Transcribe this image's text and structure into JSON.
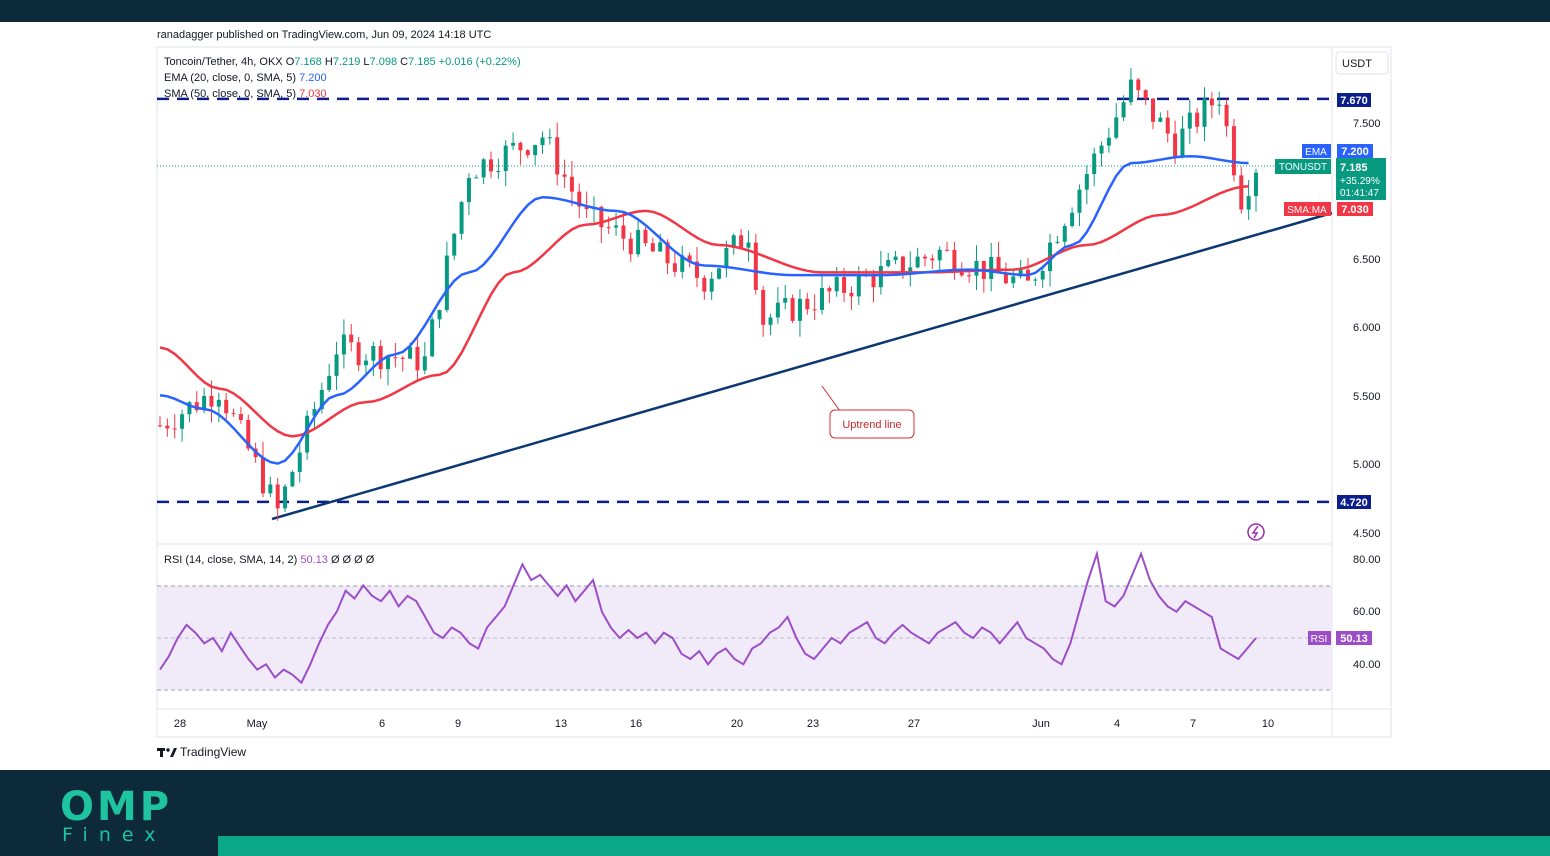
{
  "publisher": "ranadagger published on TradingView.com, Jun 09, 2024 14:18 UTC",
  "legend": {
    "symbol": "Toncoin/Tether, 4h, OKX",
    "o_label": "O",
    "o": "7.168",
    "h_label": "H",
    "h": "7.219",
    "l_label": "L",
    "l": "7.098",
    "c_label": "C",
    "c": "7.185",
    "change": "+0.016 (+0.22%)",
    "ema_label": "EMA (20, close, 0, SMA, 5)",
    "ema_value": "7.200",
    "sma_label": "SMA (50, close, 0, SMA, 5)",
    "sma_value": "7.030"
  },
  "currency": "USDT",
  "annotation": "Uptrend line",
  "price_tags": {
    "resistance": "7.670",
    "support": "4.720",
    "ema_tag": "EMA",
    "ema_value": "7.200",
    "ticker": "TONUSDT",
    "price": "7.185",
    "pct": "+35.29%",
    "countdown": "01:41:47",
    "sma_tag": "SMA:MA",
    "sma_value": "7.030",
    "rsi_tag": "RSI",
    "rsi_value": "50.13"
  },
  "rsi_legend": {
    "label": "RSI (14, close, SMA, 14, 2)",
    "value": "50.13",
    "extra": "Ø Ø Ø Ø"
  },
  "tradingview": "TradingView",
  "brand": {
    "name": "OMP",
    "sub": "Finex"
  },
  "colors": {
    "up": "#089981",
    "down": "#f23645",
    "ema": "#2962ff",
    "sma": "#f23645",
    "rsi": "#9c4dc8",
    "trend": "#0b3773",
    "level": "#0b1e8c"
  },
  "chart_data": [
    {
      "type": "candlestick",
      "title": "Toncoin/Tether, 4h, OKX",
      "x_tick_labels": [
        "28",
        "May",
        "6",
        "9",
        "13",
        "16",
        "20",
        "23",
        "27",
        "Jun",
        "4",
        "7",
        "10"
      ],
      "y_tick_labels": [
        "7.500",
        "7.000",
        "6.500",
        "6.000",
        "5.500",
        "5.000",
        "4.500"
      ],
      "ylim": [
        4.4,
        7.95
      ],
      "horizontal_levels": [
        7.67,
        4.72
      ],
      "last_price": 7.185,
      "key_points": [
        {
          "x": "Apr 26",
          "close": 5.28
        },
        {
          "x": "Apr 28",
          "close": 5.55
        },
        {
          "x": "May 1",
          "close": 4.65
        },
        {
          "x": "May 4",
          "close": 5.85
        },
        {
          "x": "May 8",
          "close": 5.75
        },
        {
          "x": "May 10",
          "close": 7.15
        },
        {
          "x": "May 13",
          "close": 7.4
        },
        {
          "x": "May 15",
          "close": 6.8
        },
        {
          "x": "May 20",
          "close": 6.35
        },
        {
          "x": "May 22",
          "close": 6.7
        },
        {
          "x": "May 23",
          "close": 6.05
        },
        {
          "x": "May 27",
          "close": 6.35
        },
        {
          "x": "May 29",
          "close": 6.55
        },
        {
          "x": "Jun 1",
          "close": 6.3
        },
        {
          "x": "Jun 4",
          "close": 7.75
        },
        {
          "x": "Jun 6",
          "close": 7.35
        },
        {
          "x": "Jun 7",
          "close": 7.7
        },
        {
          "x": "Jun 8",
          "close": 6.95
        },
        {
          "x": "Jun 9",
          "close": 7.185
        }
      ],
      "series": [
        {
          "name": "EMA (20, close, 0, SMA, 5)",
          "last": 7.2,
          "points": [
            [
              0,
              5.5
            ],
            [
              6,
              5.4
            ],
            [
              16,
              5.0
            ],
            [
              24,
              5.5
            ],
            [
              32,
              5.8
            ],
            [
              42,
              6.4
            ],
            [
              52,
              6.95
            ],
            [
              62,
              6.85
            ],
            [
              74,
              6.45
            ],
            [
              86,
              6.38
            ],
            [
              98,
              6.38
            ],
            [
              110,
              6.42
            ],
            [
              118,
              6.38
            ],
            [
              124,
              6.6
            ],
            [
              132,
              7.2
            ],
            [
              140,
              7.25
            ],
            [
              148,
              7.2
            ]
          ]
        },
        {
          "name": "SMA (50, close, 0, SMA, 5)",
          "last": 7.03,
          "points": [
            [
              0,
              5.85
            ],
            [
              8,
              5.55
            ],
            [
              18,
              5.2
            ],
            [
              28,
              5.45
            ],
            [
              38,
              5.65
            ],
            [
              48,
              6.4
            ],
            [
              58,
              6.75
            ],
            [
              66,
              6.85
            ],
            [
              76,
              6.6
            ],
            [
              90,
              6.4
            ],
            [
              104,
              6.4
            ],
            [
              116,
              6.42
            ],
            [
              126,
              6.6
            ],
            [
              136,
              6.82
            ],
            [
              148,
              7.03
            ]
          ]
        }
      ],
      "trend_line": {
        "from": {
          "x": "May 1",
          "price": 4.62
        },
        "to": {
          "x": "Jun 9",
          "price": 6.82
        }
      }
    },
    {
      "type": "line",
      "title": "RSI (14, close, SMA, 14, 2)",
      "y_tick_labels": [
        "80.00",
        "60.00",
        "40.00"
      ],
      "ylim": [
        20,
        85
      ],
      "bands": [
        70,
        50,
        30
      ],
      "last": 50.13,
      "values": [
        38,
        43,
        50,
        55,
        52,
        48,
        50,
        45,
        52,
        47,
        42,
        38,
        40,
        35,
        38,
        36,
        33,
        40,
        48,
        55,
        60,
        68,
        65,
        70,
        66,
        64,
        68,
        62,
        66,
        64,
        58,
        52,
        50,
        54,
        52,
        48,
        46,
        54,
        58,
        62,
        70,
        78,
        72,
        74,
        70,
        66,
        70,
        64,
        68,
        72,
        60,
        54,
        50,
        53,
        50,
        52,
        48,
        52,
        50,
        44,
        42,
        45,
        40,
        44,
        46,
        42,
        40,
        46,
        48,
        52,
        54,
        58,
        50,
        44,
        42,
        46,
        50,
        48,
        52,
        54,
        56,
        50,
        48,
        52,
        55,
        52,
        50,
        48,
        52,
        54,
        56,
        52,
        50,
        54,
        52,
        48,
        52,
        56,
        50,
        48,
        46,
        42,
        40,
        48,
        60,
        72,
        82,
        64,
        62,
        66,
        74,
        82,
        72,
        66,
        62,
        60,
        64,
        62,
        60,
        58,
        46,
        44,
        42,
        46,
        50
      ]
    }
  ]
}
